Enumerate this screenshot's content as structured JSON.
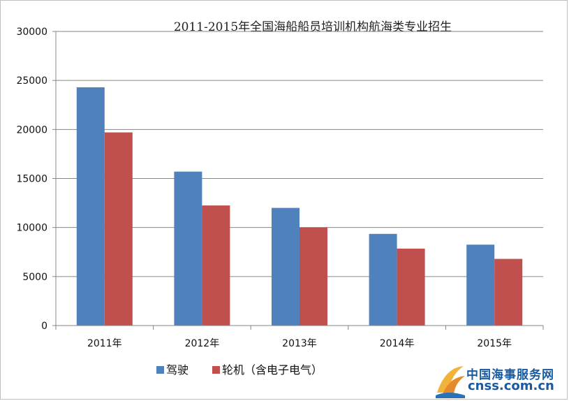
{
  "chart_data": {
    "type": "bar",
    "title": "2011-2015年全国海船船员培训机构航海类专业招生",
    "categories": [
      "2011年",
      "2012年",
      "2013年",
      "2014年",
      "2015年"
    ],
    "series": [
      {
        "name": "驾驶",
        "color": "#4f81bd",
        "values": [
          24300,
          15700,
          12000,
          9350,
          8250
        ]
      },
      {
        "name": "轮机（含电子电气）",
        "color": "#c0504d",
        "values": [
          19700,
          12250,
          10000,
          7850,
          6800
        ]
      }
    ],
    "ylim": [
      0,
      30000
    ],
    "yticks": [
      0,
      5000,
      10000,
      15000,
      20000,
      25000,
      30000
    ],
    "grid": true,
    "legend_position": "bottom"
  },
  "watermark": {
    "name": "中国海事服务网",
    "url": "cnss.com.cn"
  }
}
